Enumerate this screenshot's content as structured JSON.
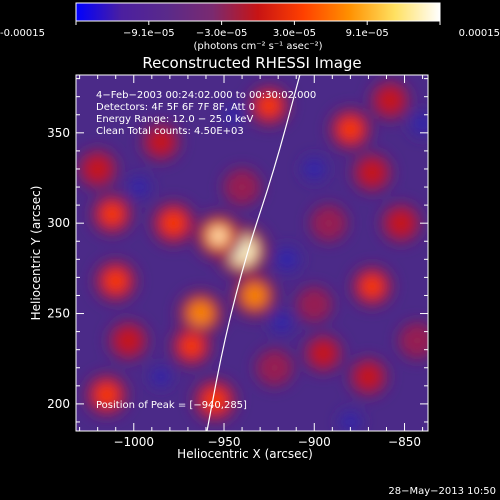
{
  "chart_data": {
    "type": "heatmap",
    "title": "Reconstructed RHESSI Image",
    "colorbar": {
      "ticks": [
        "-0.00015",
        "−9.1e−05",
        "−3.0e−05",
        "3.0e−05",
        "9.1e−05",
        "0.00015"
      ],
      "unit": "(photons cm⁻² s⁻¹ asec⁻²)",
      "range": [
        -0.00015,
        0.00015
      ],
      "colormap": [
        "#0000ff",
        "#4b1fa0",
        "#5a2a8a",
        "#7a2a70",
        "#c81414",
        "#ff4000",
        "#ff9000",
        "#ffe060",
        "#ffffff"
      ]
    },
    "xlabel": "Heliocentric X (arcsec)",
    "ylabel": "Heliocentric Y (arcsec)",
    "xlim": [
      -1032,
      -837
    ],
    "ylim": [
      185,
      382
    ],
    "xticks": [
      -1000,
      -950,
      -900,
      -850
    ],
    "xtick_labels": [
      "−1000",
      "−950",
      "−900",
      "−850"
    ],
    "yticks": [
      200,
      250,
      300,
      350
    ],
    "ytick_labels": [
      "200",
      "250",
      "300",
      "350"
    ],
    "annotations": {
      "time": "4−Feb−2003 00:24:02.000 to 00:30:02.000",
      "detectors": "Detectors: 4F 5F 6F 7F 8F, Att 0",
      "energy": "Energy Range: 12.0 − 25.0 keV",
      "clean": "Clean    Total counts: 4.50E+03",
      "peak": "Position of Peak = [−940,285]"
    },
    "limb_curve": [
      [
        -960,
        182
      ],
      [
        -950,
        235
      ],
      [
        -937,
        285
      ],
      [
        -922,
        330
      ],
      [
        -908,
        382
      ]
    ],
    "blobs": [
      {
        "x": -940,
        "y": 285,
        "intensity": 1.0
      },
      {
        "x": -953,
        "y": 293,
        "intensity": 0.75
      },
      {
        "x": -933,
        "y": 260,
        "intensity": 0.65
      },
      {
        "x": -963,
        "y": 250,
        "intensity": 0.7
      },
      {
        "x": -978,
        "y": 300,
        "intensity": 0.6
      },
      {
        "x": -968,
        "y": 232,
        "intensity": 0.5
      },
      {
        "x": -1010,
        "y": 268,
        "intensity": 0.55
      },
      {
        "x": -1003,
        "y": 235,
        "intensity": 0.45
      },
      {
        "x": -1012,
        "y": 305,
        "intensity": 0.5
      },
      {
        "x": -1020,
        "y": 330,
        "intensity": 0.45
      },
      {
        "x": -1015,
        "y": 205,
        "intensity": 0.55
      },
      {
        "x": -955,
        "y": 202,
        "intensity": 0.6
      },
      {
        "x": -925,
        "y": 365,
        "intensity": 0.5
      },
      {
        "x": -880,
        "y": 352,
        "intensity": 0.55
      },
      {
        "x": -858,
        "y": 368,
        "intensity": 0.45
      },
      {
        "x": -868,
        "y": 328,
        "intensity": 0.45
      },
      {
        "x": -892,
        "y": 300,
        "intensity": 0.35
      },
      {
        "x": -852,
        "y": 300,
        "intensity": 0.45
      },
      {
        "x": -868,
        "y": 265,
        "intensity": 0.5
      },
      {
        "x": -895,
        "y": 228,
        "intensity": 0.4
      },
      {
        "x": -922,
        "y": 220,
        "intensity": 0.35
      },
      {
        "x": -870,
        "y": 215,
        "intensity": 0.4
      },
      {
        "x": -985,
        "y": 345,
        "intensity": 0.4
      },
      {
        "x": -940,
        "y": 320,
        "intensity": 0.35
      },
      {
        "x": -900,
        "y": 255,
        "intensity": 0.3
      },
      {
        "x": -843,
        "y": 235,
        "intensity": 0.35
      }
    ],
    "dips": [
      {
        "x": -915,
        "y": 280,
        "intensity": -0.6
      },
      {
        "x": -900,
        "y": 330,
        "intensity": -0.5
      },
      {
        "x": -918,
        "y": 245,
        "intensity": -0.45
      },
      {
        "x": -840,
        "y": 355,
        "intensity": -0.55
      },
      {
        "x": -997,
        "y": 320,
        "intensity": -0.4
      },
      {
        "x": -985,
        "y": 215,
        "intensity": -0.35
      },
      {
        "x": -880,
        "y": 190,
        "intensity": -0.4
      },
      {
        "x": -945,
        "y": 360,
        "intensity": -0.35
      }
    ]
  },
  "footer": {
    "timestamp": "28−May−2013 10:50"
  }
}
